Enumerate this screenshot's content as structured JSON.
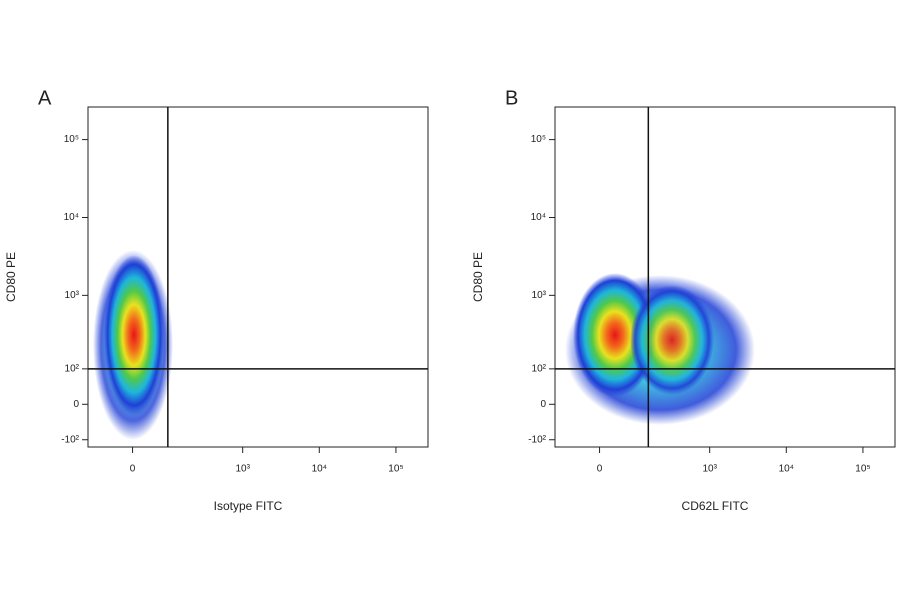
{
  "chart_data": [
    {
      "type": "scatter",
      "panel_label": "A",
      "xlabel": "Isotype FITC",
      "ylabel": "CD80 PE",
      "xscale": "biexponential",
      "yscale": "biexponential",
      "xlim": [
        -130,
        262144
      ],
      "ylim": [
        -130,
        262144
      ],
      "xticks": [
        0,
        {
          "value": 1000,
          "label": "10³"
        },
        {
          "value": 10000,
          "label": "10⁴"
        },
        {
          "value": 100000,
          "label": "10⁵"
        }
      ],
      "yticks": [
        {
          "value": -100,
          "label": "-10²"
        },
        0,
        {
          "value": 100,
          "label": "10²"
        },
        {
          "value": 1000,
          "label": "10³"
        },
        {
          "value": 10000,
          "label": "10⁴"
        },
        {
          "value": 100000,
          "label": "10⁵"
        }
      ],
      "quadrant_gate": {
        "x": 93,
        "y": 100
      }
    },
    {
      "type": "scatter",
      "panel_label": "B",
      "xlabel": "CD62L FITC",
      "ylabel": "CD80 PE",
      "xscale": "biexponential",
      "yscale": "biexponential",
      "xlim": [
        -130,
        262144
      ],
      "ylim": [
        -130,
        262144
      ],
      "xticks": [
        0,
        {
          "value": 1000,
          "label": "10³"
        },
        {
          "value": 10000,
          "label": "10⁴"
        },
        {
          "value": 100000,
          "label": "10⁵"
        }
      ],
      "yticks": [
        {
          "value": -100,
          "label": "-10²"
        },
        0,
        {
          "value": 100,
          "label": "10²"
        },
        {
          "value": 1000,
          "label": "10³"
        },
        {
          "value": 10000,
          "label": "10⁴"
        },
        {
          "value": 100000,
          "label": "10⁵"
        }
      ],
      "quadrant_gate": {
        "x": 150,
        "y": 100
      }
    }
  ]
}
